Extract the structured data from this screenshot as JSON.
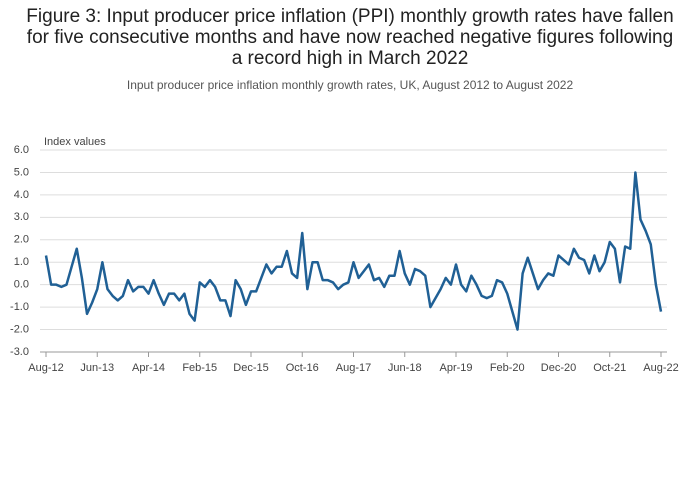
{
  "chart_data": {
    "type": "line",
    "title": "Figure 3: Input producer price inflation (PPI) monthly growth rates have fallen for five consecutive months and have now reached negative figures following a record high in March 2022",
    "subtitle": "Input producer price inflation monthly growth rates, UK, August 2012 to August 2022",
    "y_label": "Index values",
    "categories": [
      "Aug-12",
      null,
      null,
      null,
      null,
      null,
      null,
      null,
      null,
      null,
      "Jun-13",
      null,
      null,
      null,
      null,
      null,
      null,
      null,
      null,
      null,
      "Apr-14",
      null,
      null,
      null,
      null,
      null,
      null,
      null,
      null,
      null,
      "Feb-15",
      null,
      null,
      null,
      null,
      null,
      null,
      null,
      null,
      null,
      "Dec-15",
      null,
      null,
      null,
      null,
      null,
      null,
      null,
      null,
      null,
      "Oct-16",
      null,
      null,
      null,
      null,
      null,
      null,
      null,
      null,
      null,
      "Aug-17",
      null,
      null,
      null,
      null,
      null,
      null,
      null,
      null,
      null,
      "Jun-18",
      null,
      null,
      null,
      null,
      null,
      null,
      null,
      null,
      null,
      "Apr-19",
      null,
      null,
      null,
      null,
      null,
      null,
      null,
      null,
      null,
      "Feb-20",
      null,
      null,
      null,
      null,
      null,
      null,
      null,
      null,
      null,
      "Dec-20",
      null,
      null,
      null,
      null,
      null,
      null,
      null,
      null,
      null,
      "Oct-21",
      null,
      null,
      null,
      null,
      null,
      null,
      null,
      null,
      null,
      "Aug-22"
    ],
    "series": [
      {
        "color": "#206095",
        "values": [
          1.3,
          0.0,
          0.0,
          -0.1,
          0.0,
          0.8,
          1.6,
          0.3,
          -1.3,
          -0.8,
          -0.2,
          1.0,
          -0.2,
          -0.5,
          -0.7,
          -0.5,
          0.2,
          -0.3,
          -0.1,
          -0.1,
          -0.4,
          0.2,
          -0.4,
          -0.9,
          -0.4,
          -0.4,
          -0.7,
          -0.4,
          -1.3,
          -1.6,
          0.1,
          -0.1,
          0.2,
          -0.1,
          -0.7,
          -0.7,
          -1.4,
          0.2,
          -0.2,
          -0.9,
          -0.3,
          -0.3,
          0.3,
          0.9,
          0.5,
          0.8,
          0.8,
          1.5,
          0.5,
          0.3,
          2.3,
          -0.2,
          1.0,
          1.0,
          0.2,
          0.2,
          0.1,
          -0.2,
          0.0,
          0.1,
          1.0,
          0.3,
          0.6,
          0.9,
          0.2,
          0.3,
          -0.1,
          0.4,
          0.4,
          1.5,
          0.5,
          0.0,
          0.7,
          0.6,
          0.4,
          -1.0,
          -0.6,
          -0.2,
          0.3,
          0.0,
          0.9,
          0.0,
          -0.3,
          0.4,
          0.0,
          -0.5,
          -0.6,
          -0.5,
          0.2,
          0.1,
          -0.4,
          -1.2,
          -2.0,
          0.5,
          1.2,
          0.5,
          -0.2,
          0.2,
          0.5,
          0.4,
          1.3,
          1.1,
          0.9,
          1.6,
          1.2,
          1.1,
          0.5,
          1.3,
          0.6,
          1.0,
          1.9,
          1.6,
          0.1,
          1.7,
          1.6,
          5.0,
          2.9,
          2.4,
          1.8,
          0.0,
          -1.2
        ]
      }
    ],
    "ylim": [
      -3,
      6
    ],
    "yticks": [
      {
        "value": -3,
        "label": "-3.0"
      },
      {
        "value": -2,
        "label": "-2.0"
      },
      {
        "value": -1,
        "label": "-1.0"
      },
      {
        "value": 0,
        "label": "0.0"
      },
      {
        "value": 1,
        "label": "1.0"
      },
      {
        "value": 2,
        "label": "2.0"
      },
      {
        "value": 3,
        "label": "3.0"
      },
      {
        "value": 4,
        "label": "4.0"
      },
      {
        "value": 5,
        "label": "5.0"
      },
      {
        "value": 6,
        "label": "6.0"
      }
    ],
    "grid": true
  }
}
